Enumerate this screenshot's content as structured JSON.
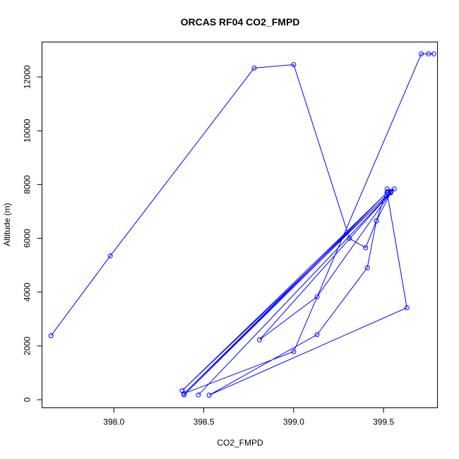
{
  "chart_data": {
    "type": "line",
    "title": "ORCAS RF04 CO2_FMPD",
    "xlabel": "CO2_FMPD",
    "ylabel": "Altitude (m)",
    "xlim": [
      397.6,
      399.8
    ],
    "ylim": [
      -300,
      13300
    ],
    "xticks": [
      398.0,
      398.5,
      399.0,
      399.5
    ],
    "xtick_labels": [
      "398.0",
      "398.5",
      "399.0",
      "399.5"
    ],
    "yticks": [
      0,
      2000,
      4000,
      6000,
      8000,
      10000,
      12000
    ],
    "ytick_labels": [
      "0",
      "2000",
      "4000",
      "6000",
      "8000",
      "10000",
      "12000"
    ],
    "grid": false,
    "marker": "open-circle",
    "color": "#0000ff",
    "series": [
      {
        "x": [
          397.65,
          397.98,
          398.78,
          399.0,
          399.31,
          399.4,
          399.46,
          399.52,
          399.54,
          398.38,
          399.52,
          399.54,
          398.39,
          399.52,
          399.56,
          398.47,
          399.54,
          398.81,
          399.13,
          399.54,
          399.46,
          399.41,
          399.13,
          398.53,
          399.63,
          399.52,
          398.39,
          399.0,
          399.71,
          399.75,
          399.78
        ],
        "y": [
          2380,
          5350,
          12330,
          12460,
          6000,
          5650,
          6650,
          7840,
          7720,
          340,
          7700,
          7740,
          180,
          7700,
          7840,
          180,
          7700,
          2230,
          3830,
          7700,
          6650,
          4910,
          2420,
          170,
          3420,
          7700,
          230,
          1790,
          12860,
          12860,
          12860
        ]
      }
    ]
  }
}
